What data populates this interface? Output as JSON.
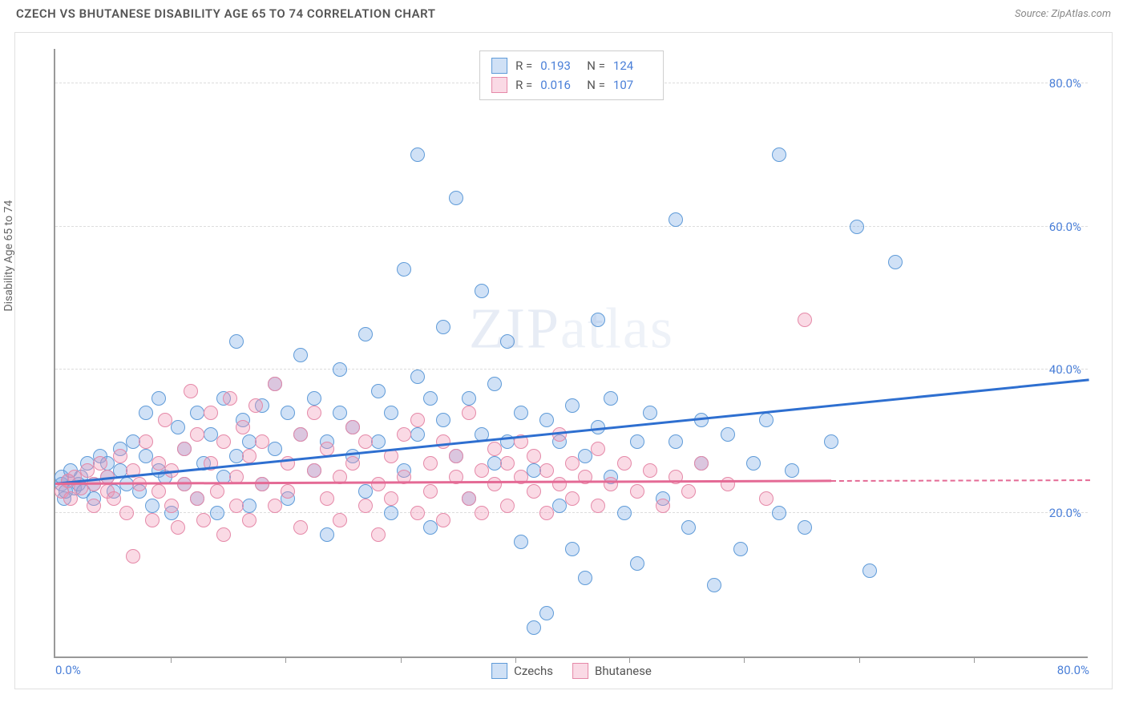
{
  "header": {
    "title": "CZECH VS BHUTANESE DISABILITY AGE 65 TO 74 CORRELATION CHART",
    "source_prefix": "Source: ",
    "source_name": "ZipAtlas.com"
  },
  "watermark": {
    "a": "ZIP",
    "b": "atlas"
  },
  "chart": {
    "type": "scatter",
    "y_axis_label": "Disability Age 65 to 74",
    "xlim": [
      0,
      80
    ],
    "ylim": [
      0,
      85
    ],
    "x_ticks_major": [
      0,
      80
    ],
    "x_ticks_minor": [
      8.9,
      17.8,
      26.7,
      35.6,
      44.4,
      53.3,
      62.2,
      71.1
    ],
    "y_ticks": [
      20,
      40,
      60,
      80
    ],
    "x_tick_labels": [
      "0.0%",
      "80.0%"
    ],
    "y_tick_labels": [
      "20.0%",
      "40.0%",
      "60.0%",
      "80.0%"
    ],
    "background_color": "#ffffff",
    "grid_color": "#dddddd",
    "axis_color": "#999999",
    "tick_label_color": "#4a7fd8",
    "marker_radius": 9,
    "marker_border_width": 1.5,
    "series": [
      {
        "name": "Czechs",
        "fill": "rgba(120,170,230,0.35)",
        "stroke": "#5f9bd8",
        "line_color": "#2e6fd0",
        "R": "0.193",
        "N": "124",
        "trend": {
          "x1": 0,
          "y1": 24,
          "x2": 80,
          "y2": 38.5,
          "dash_from_x": 80
        },
        "points": [
          [
            0.5,
            24
          ],
          [
            0.5,
            25
          ],
          [
            0.7,
            22
          ],
          [
            0.8,
            23
          ],
          [
            1,
            24.5
          ],
          [
            1.2,
            26
          ],
          [
            1.5,
            23.5
          ],
          [
            1.8,
            24
          ],
          [
            2,
            25
          ],
          [
            2.2,
            23
          ],
          [
            2.5,
            27
          ],
          [
            3,
            22
          ],
          [
            3,
            24
          ],
          [
            3.5,
            28
          ],
          [
            4,
            25
          ],
          [
            4,
            27
          ],
          [
            4.5,
            23
          ],
          [
            5,
            29
          ],
          [
            5,
            26
          ],
          [
            5.5,
            24
          ],
          [
            6,
            30
          ],
          [
            6.5,
            23
          ],
          [
            7,
            28
          ],
          [
            7,
            34
          ],
          [
            7.5,
            21
          ],
          [
            8,
            26
          ],
          [
            8,
            36
          ],
          [
            8.5,
            25
          ],
          [
            9,
            20
          ],
          [
            9.5,
            32
          ],
          [
            10,
            24
          ],
          [
            10,
            29
          ],
          [
            11,
            34
          ],
          [
            11,
            22
          ],
          [
            11.5,
            27
          ],
          [
            12,
            31
          ],
          [
            12.5,
            20
          ],
          [
            13,
            36
          ],
          [
            13,
            25
          ],
          [
            14,
            44
          ],
          [
            14,
            28
          ],
          [
            14.5,
            33
          ],
          [
            15,
            21
          ],
          [
            15,
            30
          ],
          [
            16,
            35
          ],
          [
            16,
            24
          ],
          [
            17,
            38
          ],
          [
            17,
            29
          ],
          [
            18,
            34
          ],
          [
            18,
            22
          ],
          [
            19,
            31
          ],
          [
            19,
            42
          ],
          [
            20,
            26
          ],
          [
            20,
            36
          ],
          [
            21,
            30
          ],
          [
            21,
            17
          ],
          [
            22,
            34
          ],
          [
            22,
            40
          ],
          [
            23,
            28
          ],
          [
            23,
            32
          ],
          [
            24,
            45
          ],
          [
            24,
            23
          ],
          [
            25,
            37
          ],
          [
            25,
            30
          ],
          [
            26,
            34
          ],
          [
            26,
            20
          ],
          [
            27,
            54
          ],
          [
            27,
            26
          ],
          [
            28,
            39
          ],
          [
            28,
            31
          ],
          [
            28,
            70
          ],
          [
            29,
            36
          ],
          [
            29,
            18
          ],
          [
            30,
            33
          ],
          [
            30,
            46
          ],
          [
            31,
            28
          ],
          [
            31,
            64
          ],
          [
            32,
            36
          ],
          [
            32,
            22
          ],
          [
            33,
            31
          ],
          [
            33,
            51
          ],
          [
            34,
            38
          ],
          [
            34,
            27
          ],
          [
            35,
            30
          ],
          [
            35,
            44
          ],
          [
            36,
            34
          ],
          [
            36,
            16
          ],
          [
            37,
            26
          ],
          [
            37,
            4
          ],
          [
            38,
            33
          ],
          [
            38,
            6
          ],
          [
            39,
            21
          ],
          [
            39,
            30
          ],
          [
            40,
            35
          ],
          [
            40,
            15
          ],
          [
            41,
            28
          ],
          [
            41,
            11
          ],
          [
            42,
            32
          ],
          [
            42,
            47
          ],
          [
            43,
            25
          ],
          [
            43,
            36
          ],
          [
            44,
            20
          ],
          [
            45,
            30
          ],
          [
            45,
            13
          ],
          [
            46,
            34
          ],
          [
            47,
            22
          ],
          [
            48,
            61
          ],
          [
            48,
            30
          ],
          [
            49,
            18
          ],
          [
            50,
            33
          ],
          [
            50,
            27
          ],
          [
            51,
            10
          ],
          [
            52,
            31
          ],
          [
            53,
            15
          ],
          [
            54,
            27
          ],
          [
            55,
            33
          ],
          [
            56,
            20
          ],
          [
            56,
            70
          ],
          [
            57,
            26
          ],
          [
            58,
            18
          ],
          [
            60,
            30
          ],
          [
            62,
            60
          ],
          [
            63,
            12
          ],
          [
            65,
            55
          ]
        ]
      },
      {
        "name": "Bhutanese",
        "fill": "rgba(240,150,180,0.35)",
        "stroke": "#e589a8",
        "line_color": "#e46a95",
        "R": "0.016",
        "N": "107",
        "trend": {
          "x1": 0,
          "y1": 24,
          "x2": 60,
          "y2": 24.4,
          "dash_from_x": 60
        },
        "points": [
          [
            0.5,
            23
          ],
          [
            1,
            24.5
          ],
          [
            1.2,
            22
          ],
          [
            1.5,
            25
          ],
          [
            2,
            23.5
          ],
          [
            2.5,
            26
          ],
          [
            3,
            21
          ],
          [
            3,
            24
          ],
          [
            3.5,
            27
          ],
          [
            4,
            23
          ],
          [
            4,
            25
          ],
          [
            4.5,
            22
          ],
          [
            5,
            28
          ],
          [
            5.5,
            20
          ],
          [
            6,
            26
          ],
          [
            6,
            14
          ],
          [
            6.5,
            24
          ],
          [
            7,
            30
          ],
          [
            7.5,
            19
          ],
          [
            8,
            27
          ],
          [
            8,
            23
          ],
          [
            8.5,
            33
          ],
          [
            9,
            21
          ],
          [
            9,
            26
          ],
          [
            9.5,
            18
          ],
          [
            10,
            29
          ],
          [
            10,
            24
          ],
          [
            10.5,
            37
          ],
          [
            11,
            22
          ],
          [
            11,
            31
          ],
          [
            11.5,
            19
          ],
          [
            12,
            27
          ],
          [
            12,
            34
          ],
          [
            12.5,
            23
          ],
          [
            13,
            30
          ],
          [
            13,
            17
          ],
          [
            13.5,
            36
          ],
          [
            14,
            25
          ],
          [
            14,
            21
          ],
          [
            14.5,
            32
          ],
          [
            15,
            28
          ],
          [
            15,
            19
          ],
          [
            15.5,
            35
          ],
          [
            16,
            24
          ],
          [
            16,
            30
          ],
          [
            17,
            21
          ],
          [
            17,
            38
          ],
          [
            18,
            27
          ],
          [
            18,
            23
          ],
          [
            19,
            31
          ],
          [
            19,
            18
          ],
          [
            20,
            26
          ],
          [
            20,
            34
          ],
          [
            21,
            22
          ],
          [
            21,
            29
          ],
          [
            22,
            25
          ],
          [
            22,
            19
          ],
          [
            23,
            32
          ],
          [
            23,
            27
          ],
          [
            24,
            21
          ],
          [
            24,
            30
          ],
          [
            25,
            24
          ],
          [
            25,
            17
          ],
          [
            26,
            28
          ],
          [
            26,
            22
          ],
          [
            27,
            31
          ],
          [
            27,
            25
          ],
          [
            28,
            20
          ],
          [
            28,
            33
          ],
          [
            29,
            27
          ],
          [
            29,
            23
          ],
          [
            30,
            30
          ],
          [
            30,
            19
          ],
          [
            31,
            25
          ],
          [
            31,
            28
          ],
          [
            32,
            22
          ],
          [
            32,
            34
          ],
          [
            33,
            26
          ],
          [
            33,
            20
          ],
          [
            34,
            29
          ],
          [
            34,
            24
          ],
          [
            35,
            27
          ],
          [
            35,
            21
          ],
          [
            36,
            30
          ],
          [
            36,
            25
          ],
          [
            37,
            23
          ],
          [
            37,
            28
          ],
          [
            38,
            20
          ],
          [
            38,
            26
          ],
          [
            39,
            24
          ],
          [
            39,
            31
          ],
          [
            40,
            22
          ],
          [
            40,
            27
          ],
          [
            41,
            25
          ],
          [
            42,
            21
          ],
          [
            42,
            29
          ],
          [
            43,
            24
          ],
          [
            44,
            27
          ],
          [
            45,
            23
          ],
          [
            46,
            26
          ],
          [
            47,
            21
          ],
          [
            48,
            25
          ],
          [
            49,
            23
          ],
          [
            50,
            27
          ],
          [
            52,
            24
          ],
          [
            55,
            22
          ],
          [
            58,
            47
          ]
        ]
      }
    ]
  }
}
